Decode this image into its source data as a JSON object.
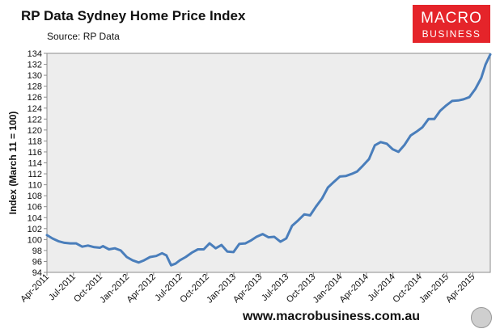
{
  "title": "RP Data Sydney Home Price Index",
  "source": "Source: RP Data",
  "logo": {
    "line1": "MACRO",
    "line2": "BUSINESS",
    "bg": "#e5242a"
  },
  "footer": "www.macrobusiness.com.au",
  "chart_data": {
    "type": "line",
    "ylabel": "Index (March 11 = 100)",
    "ylim": [
      94,
      134
    ],
    "yticks": [
      94,
      96,
      98,
      100,
      102,
      104,
      106,
      108,
      110,
      112,
      114,
      116,
      118,
      120,
      122,
      124,
      126,
      128,
      130,
      132,
      134
    ],
    "xlim": [
      "2011-04-01",
      "2015-05-31"
    ],
    "xticks": [
      {
        "date": "2011-04-01",
        "label": "Apr-2011"
      },
      {
        "date": "2011-07-01",
        "label": "Jul-2011"
      },
      {
        "date": "2011-10-01",
        "label": "Oct-2011"
      },
      {
        "date": "2012-01-01",
        "label": "Jan-2012"
      },
      {
        "date": "2012-04-01",
        "label": "Apr-2012"
      },
      {
        "date": "2012-07-01",
        "label": "Jul-2012"
      },
      {
        "date": "2012-10-01",
        "label": "Oct-2012"
      },
      {
        "date": "2013-01-01",
        "label": "Jan-2013"
      },
      {
        "date": "2013-04-01",
        "label": "Apr-2013"
      },
      {
        "date": "2013-07-01",
        "label": "Jul-2013"
      },
      {
        "date": "2013-10-01",
        "label": "Oct-2013"
      },
      {
        "date": "2014-01-01",
        "label": "Jan-2014"
      },
      {
        "date": "2014-04-01",
        "label": "Apr-2014"
      },
      {
        "date": "2014-07-01",
        "label": "Jul-2014"
      },
      {
        "date": "2014-10-01",
        "label": "Oct-2014"
      },
      {
        "date": "2015-01-01",
        "label": "Jan-2015"
      },
      {
        "date": "2015-04-01",
        "label": "Apr-2015"
      }
    ],
    "grid": false,
    "series": [
      {
        "color": "#4a7ebb",
        "points": [
          [
            "2011-04-01",
            100.8
          ],
          [
            "2011-04-20",
            100.2
          ],
          [
            "2011-05-10",
            99.7
          ],
          [
            "2011-05-31",
            99.4
          ],
          [
            "2011-06-20",
            99.3
          ],
          [
            "2011-07-10",
            99.3
          ],
          [
            "2011-07-31",
            98.7
          ],
          [
            "2011-08-20",
            98.9
          ],
          [
            "2011-09-10",
            98.6
          ],
          [
            "2011-09-30",
            98.5
          ],
          [
            "2011-10-10",
            98.8
          ],
          [
            "2011-10-31",
            98.2
          ],
          [
            "2011-11-20",
            98.4
          ],
          [
            "2011-12-10",
            98.0
          ],
          [
            "2011-12-31",
            96.8
          ],
          [
            "2012-01-20",
            96.2
          ],
          [
            "2012-02-10",
            95.8
          ],
          [
            "2012-02-28",
            96.2
          ],
          [
            "2012-03-20",
            96.8
          ],
          [
            "2012-04-10",
            97.0
          ],
          [
            "2012-04-30",
            97.5
          ],
          [
            "2012-05-15",
            97.1
          ],
          [
            "2012-05-31",
            95.3
          ],
          [
            "2012-06-15",
            95.6
          ],
          [
            "2012-06-30",
            96.2
          ],
          [
            "2012-07-20",
            96.8
          ],
          [
            "2012-08-10",
            97.6
          ],
          [
            "2012-08-31",
            98.2
          ],
          [
            "2012-09-20",
            98.2
          ],
          [
            "2012-10-10",
            99.3
          ],
          [
            "2012-10-31",
            98.4
          ],
          [
            "2012-11-20",
            99.0
          ],
          [
            "2012-12-10",
            97.8
          ],
          [
            "2012-12-31",
            97.7
          ],
          [
            "2013-01-20",
            99.2
          ],
          [
            "2013-02-10",
            99.3
          ],
          [
            "2013-02-28",
            99.8
          ],
          [
            "2013-03-20",
            100.5
          ],
          [
            "2013-04-10",
            101.0
          ],
          [
            "2013-04-30",
            100.4
          ],
          [
            "2013-05-20",
            100.5
          ],
          [
            "2013-06-10",
            99.6
          ],
          [
            "2013-06-30",
            100.2
          ],
          [
            "2013-07-20",
            102.5
          ],
          [
            "2013-08-10",
            103.5
          ],
          [
            "2013-08-31",
            104.6
          ],
          [
            "2013-09-20",
            104.4
          ],
          [
            "2013-10-10",
            106.0
          ],
          [
            "2013-10-31",
            107.5
          ],
          [
            "2013-11-20",
            109.5
          ],
          [
            "2013-12-10",
            110.5
          ],
          [
            "2013-12-31",
            111.5
          ],
          [
            "2014-01-20",
            111.6
          ],
          [
            "2014-02-10",
            112.0
          ],
          [
            "2014-02-28",
            112.4
          ],
          [
            "2014-03-20",
            113.5
          ],
          [
            "2014-04-10",
            114.7
          ],
          [
            "2014-04-30",
            117.2
          ],
          [
            "2014-05-20",
            117.8
          ],
          [
            "2014-06-10",
            117.5
          ],
          [
            "2014-06-30",
            116.5
          ],
          [
            "2014-07-20",
            116.0
          ],
          [
            "2014-08-10",
            117.3
          ],
          [
            "2014-08-31",
            119.0
          ],
          [
            "2014-09-20",
            119.7
          ],
          [
            "2014-10-10",
            120.5
          ],
          [
            "2014-10-31",
            122.0
          ],
          [
            "2014-11-20",
            122.0
          ],
          [
            "2014-12-10",
            123.5
          ],
          [
            "2014-12-31",
            124.5
          ],
          [
            "2015-01-20",
            125.3
          ],
          [
            "2015-02-10",
            125.4
          ],
          [
            "2015-02-28",
            125.6
          ],
          [
            "2015-03-20",
            126.0
          ],
          [
            "2015-04-10",
            127.5
          ],
          [
            "2015-04-30",
            129.5
          ],
          [
            "2015-05-15",
            132.0
          ],
          [
            "2015-05-31",
            133.8
          ]
        ]
      }
    ]
  }
}
